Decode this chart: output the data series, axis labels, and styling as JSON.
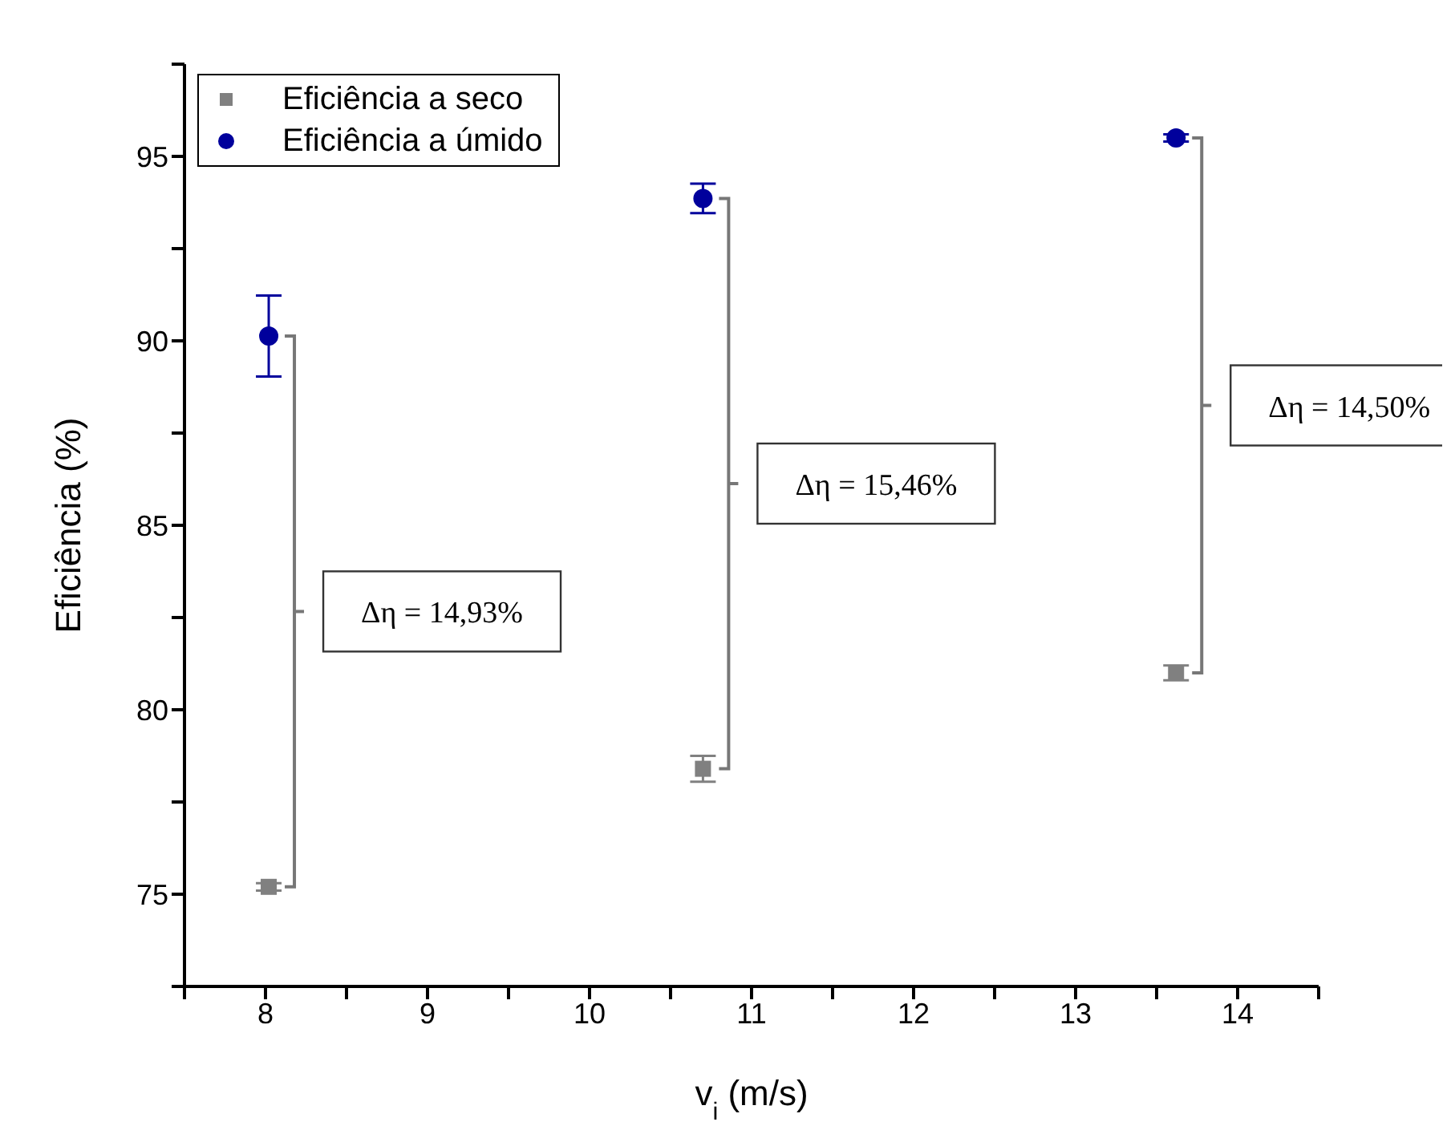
{
  "chart_data": {
    "type": "scatter",
    "xlabel": "v$_{i}$ (m/s)",
    "ylabel": "Eficiência (%)",
    "xlim": [
      7.5,
      14.5
    ],
    "xticks": [
      {
        "value": 7.5,
        "label": null
      },
      8,
      {
        "value": 8.5,
        "label": null
      },
      9,
      {
        "value": 9.5,
        "label": null
      },
      10,
      {
        "value": 10.5,
        "label": null
      },
      11,
      {
        "value": 11.5,
        "label": null
      },
      12,
      {
        "value": 12.5,
        "label": null
      },
      13,
      {
        "value": 13.5,
        "label": null
      },
      14,
      {
        "value": 14.5,
        "label": null
      }
    ],
    "ylim": [
      72.5,
      97.5
    ],
    "yticks": [
      {
        "value": 72.5,
        "label": null
      },
      75,
      {
        "value": 77.5,
        "label": null
      },
      80,
      {
        "value": 82.5,
        "label": null
      },
      85,
      {
        "value": 87.5,
        "label": null
      },
      90,
      {
        "value": 92.5,
        "label": null
      },
      95,
      {
        "value": 97.5,
        "label": null
      }
    ],
    "series": [
      {
        "name": "Eficiência a seco",
        "color": "#808080",
        "marker": "square",
        "x": [
          8.02,
          10.7,
          13.62
        ],
        "values": [
          75.2,
          78.4,
          81.0
        ],
        "errors": [
          0.1,
          0.35,
          0.2
        ]
      },
      {
        "name": "Eficiência a úmido",
        "color": "#00009c",
        "marker": "circle",
        "x": [
          8.02,
          10.7,
          13.62
        ],
        "values": [
          90.13,
          93.86,
          95.5
        ],
        "errors": [
          1.1,
          0.4,
          0.1
        ]
      }
    ],
    "annotations": [
      "Δη = 14,93%",
      "Δη = 15,46%",
      "Δη = 14,50%"
    ],
    "legend": "top left",
    "grid": false
  }
}
